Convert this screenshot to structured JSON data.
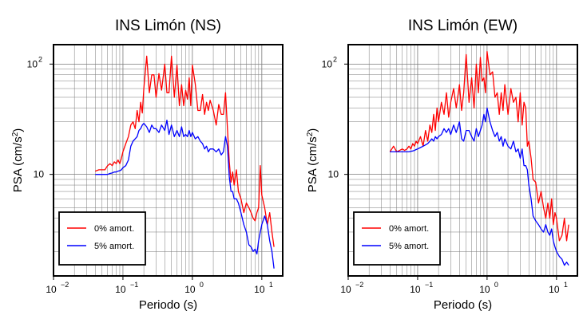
{
  "chart_data": [
    {
      "type": "line",
      "title": "INS Limón (NS)",
      "xlabel": "Periodo (s)",
      "ylabel_main": "PSA (cm/s",
      "ylabel_sup": "2",
      "ylabel_end": ")",
      "x_scale": "log",
      "y_scale": "log",
      "xlim": [
        0.01,
        20
      ],
      "ylim": [
        1.2,
        150
      ],
      "grid": true,
      "legend_position": "bottom-left",
      "x_ticks": [
        {
          "base": "10",
          "exp": "−2",
          "value": 0.01
        },
        {
          "base": "10",
          "exp": "−1",
          "value": 0.1
        },
        {
          "base": "10",
          "exp": "0",
          "value": 1
        },
        {
          "base": "10",
          "exp": "1",
          "value": 10
        }
      ],
      "y_ticks": [
        {
          "base": "10",
          "exp": "",
          "value": 10
        },
        {
          "base": "10",
          "exp": "2",
          "value": 100
        }
      ],
      "series": [
        {
          "name": "0% amort.",
          "color": "#ff0000",
          "x": [
            0.04,
            0.045,
            0.05,
            0.055,
            0.06,
            0.065,
            0.07,
            0.075,
            0.08,
            0.085,
            0.09,
            0.095,
            0.1,
            0.11,
            0.12,
            0.13,
            0.14,
            0.15,
            0.16,
            0.17,
            0.18,
            0.19,
            0.2,
            0.22,
            0.24,
            0.26,
            0.28,
            0.3,
            0.33,
            0.36,
            0.4,
            0.43,
            0.46,
            0.5,
            0.55,
            0.6,
            0.65,
            0.7,
            0.75,
            0.8,
            0.85,
            0.9,
            0.95,
            1.0,
            1.1,
            1.2,
            1.3,
            1.4,
            1.5,
            1.6,
            1.7,
            1.8,
            2.0,
            2.2,
            2.4,
            2.6,
            2.8,
            3.0,
            3.2,
            3.4,
            3.6,
            3.8,
            4.0,
            4.3,
            4.6,
            5.0,
            5.5,
            6.0,
            6.5,
            7.0,
            7.5,
            8.0,
            8.5,
            9.0,
            9.5,
            10,
            11,
            12,
            13,
            14,
            15
          ],
          "y": [
            10.7,
            11.0,
            11.0,
            11.0,
            12.0,
            12.5,
            12.0,
            13.0,
            12.5,
            13.5,
            12.5,
            14.0,
            16.0,
            19.0,
            22.0,
            28.0,
            30.0,
            26.0,
            38.0,
            30.0,
            45.0,
            36.0,
            60.0,
            118.0,
            55.0,
            80.0,
            80.0,
            50.0,
            82.0,
            58.0,
            100.0,
            55.0,
            55.0,
            118.0,
            50.0,
            98.0,
            42.0,
            65.0,
            42.0,
            58.0,
            48.0,
            75.0,
            42.0,
            98.0,
            66.0,
            38.0,
            38.0,
            53.0,
            35.0,
            45.0,
            38.0,
            47.0,
            38.0,
            28.0,
            43.0,
            35.0,
            35.0,
            55.0,
            26.0,
            13.0,
            8.5,
            10.5,
            8.0,
            11.0,
            7.0,
            6.0,
            4.5,
            5.5,
            5.0,
            4.5,
            4.0,
            3.8,
            4.5,
            5.0,
            12.0,
            6.5,
            5.0,
            3.5,
            4.5,
            3.0,
            2.2
          ]
        },
        {
          "name": "5% amort.",
          "color": "#0000ff",
          "x": [
            0.04,
            0.045,
            0.05,
            0.055,
            0.06,
            0.065,
            0.07,
            0.075,
            0.08,
            0.085,
            0.09,
            0.095,
            0.1,
            0.11,
            0.12,
            0.13,
            0.14,
            0.15,
            0.16,
            0.17,
            0.18,
            0.19,
            0.2,
            0.22,
            0.24,
            0.26,
            0.28,
            0.3,
            0.33,
            0.36,
            0.4,
            0.43,
            0.46,
            0.5,
            0.55,
            0.6,
            0.65,
            0.7,
            0.75,
            0.8,
            0.85,
            0.9,
            0.95,
            1.0,
            1.1,
            1.2,
            1.3,
            1.4,
            1.5,
            1.6,
            1.7,
            1.8,
            2.0,
            2.2,
            2.4,
            2.6,
            2.8,
            3.0,
            3.2,
            3.4,
            3.6,
            3.8,
            4.0,
            4.3,
            4.6,
            5.0,
            5.5,
            6.0,
            6.5,
            7.0,
            7.5,
            8.0,
            8.5,
            9.0,
            9.5,
            10,
            11,
            12,
            13,
            14,
            15
          ],
          "y": [
            10.0,
            10.0,
            10.0,
            10.0,
            10.0,
            10.2,
            10.3,
            10.5,
            10.5,
            10.7,
            10.8,
            11.0,
            11.5,
            12.0,
            13.5,
            18.0,
            20.0,
            21.0,
            22.0,
            25.0,
            26.0,
            28.0,
            29.0,
            27.0,
            24.0,
            28.0,
            26.0,
            26.0,
            24.0,
            28.0,
            25.0,
            31.0,
            23.0,
            28.0,
            22.0,
            25.0,
            22.0,
            27.0,
            22.0,
            23.0,
            22.0,
            25.0,
            22.0,
            24.0,
            21.0,
            22.0,
            20.0,
            19.0,
            17.0,
            18.0,
            16.0,
            17.0,
            17.0,
            16.0,
            17.0,
            15.0,
            16.0,
            22.0,
            18.0,
            9.5,
            7.0,
            7.0,
            6.0,
            6.0,
            5.5,
            4.5,
            3.5,
            3.0,
            2.3,
            2.2,
            2.0,
            2.1,
            1.9,
            2.5,
            3.0,
            3.5,
            4.2,
            3.5,
            2.5,
            2.0,
            1.4
          ]
        }
      ],
      "legend_entries": [
        "0% amort.",
        "5% amort."
      ]
    },
    {
      "type": "line",
      "title": "INS Limón (EW)",
      "xlabel": "Periodo (s)",
      "ylabel_main": "PSA (cm/s",
      "ylabel_sup": "2",
      "ylabel_end": ")",
      "x_scale": "log",
      "y_scale": "log",
      "xlim": [
        0.01,
        20
      ],
      "ylim": [
        1.2,
        150
      ],
      "grid": true,
      "legend_position": "bottom-left",
      "x_ticks": [
        {
          "base": "10",
          "exp": "−2",
          "value": 0.01
        },
        {
          "base": "10",
          "exp": "−1",
          "value": 0.1
        },
        {
          "base": "10",
          "exp": "0",
          "value": 1
        },
        {
          "base": "10",
          "exp": "1",
          "value": 10
        }
      ],
      "y_ticks": [
        {
          "base": "10",
          "exp": "",
          "value": 10
        },
        {
          "base": "10",
          "exp": "2",
          "value": 100
        }
      ],
      "series": [
        {
          "name": "0% amort.",
          "color": "#ff0000",
          "x": [
            0.04,
            0.045,
            0.05,
            0.055,
            0.06,
            0.065,
            0.07,
            0.075,
            0.08,
            0.085,
            0.09,
            0.095,
            0.1,
            0.11,
            0.12,
            0.13,
            0.14,
            0.15,
            0.16,
            0.17,
            0.18,
            0.19,
            0.2,
            0.22,
            0.24,
            0.26,
            0.28,
            0.3,
            0.33,
            0.36,
            0.4,
            0.43,
            0.46,
            0.5,
            0.55,
            0.6,
            0.65,
            0.7,
            0.75,
            0.8,
            0.85,
            0.9,
            0.95,
            1.0,
            1.1,
            1.2,
            1.3,
            1.4,
            1.5,
            1.6,
            1.7,
            1.8,
            2.0,
            2.2,
            2.4,
            2.6,
            2.8,
            3.0,
            3.2,
            3.4,
            3.6,
            3.8,
            4.0,
            4.3,
            4.6,
            5.0,
            5.5,
            6.0,
            6.5,
            7.0,
            7.5,
            8.0,
            8.5,
            9.0,
            9.5,
            10,
            11,
            12,
            13,
            14,
            15
          ],
          "y": [
            16.0,
            18.0,
            16.0,
            16.5,
            17.0,
            16.5,
            17.0,
            18.0,
            17.0,
            19.0,
            18.0,
            20.0,
            19.0,
            22.0,
            18.0,
            25.0,
            20.0,
            28.0,
            24.0,
            35.0,
            25.0,
            40.0,
            30.0,
            45.0,
            35.0,
            55.0,
            33.0,
            45.0,
            60.0,
            40.0,
            65.0,
            38.0,
            55.0,
            122.0,
            45.0,
            75.0,
            40.0,
            100.0,
            55.0,
            115.0,
            70.0,
            75.0,
            55.0,
            130.0,
            80.0,
            85.0,
            50.0,
            55.0,
            35.0,
            55.0,
            38.0,
            65.0,
            35.0,
            60.0,
            45.0,
            50.0,
            30.0,
            55.0,
            28.0,
            45.0,
            40.0,
            18.0,
            20.0,
            14.0,
            9.0,
            8.5,
            5.5,
            7.0,
            5.0,
            4.0,
            5.5,
            4.0,
            6.0,
            3.5,
            4.5,
            4.0,
            2.5,
            2.8,
            4.0,
            2.5,
            3.5
          ]
        },
        {
          "name": "5% amort.",
          "color": "#0000ff",
          "x": [
            0.04,
            0.045,
            0.05,
            0.055,
            0.06,
            0.065,
            0.07,
            0.075,
            0.08,
            0.085,
            0.09,
            0.095,
            0.1,
            0.11,
            0.12,
            0.13,
            0.14,
            0.15,
            0.16,
            0.17,
            0.18,
            0.19,
            0.2,
            0.22,
            0.24,
            0.26,
            0.28,
            0.3,
            0.33,
            0.36,
            0.4,
            0.43,
            0.46,
            0.5,
            0.55,
            0.6,
            0.65,
            0.7,
            0.75,
            0.8,
            0.85,
            0.9,
            0.95,
            1.0,
            1.1,
            1.2,
            1.3,
            1.4,
            1.5,
            1.6,
            1.7,
            1.8,
            2.0,
            2.2,
            2.4,
            2.6,
            2.8,
            3.0,
            3.2,
            3.4,
            3.6,
            3.8,
            4.0,
            4.3,
            4.6,
            5.0,
            5.5,
            6.0,
            6.5,
            7.0,
            7.5,
            8.0,
            8.5,
            9.0,
            9.5,
            10,
            11,
            12,
            13,
            14,
            15
          ],
          "y": [
            16.0,
            16.0,
            16.0,
            16.0,
            16.0,
            16.0,
            16.0,
            16.0,
            16.2,
            16.3,
            16.5,
            16.8,
            17.0,
            17.5,
            18.0,
            18.5,
            19.0,
            20.0,
            21.0,
            20.0,
            22.0,
            21.0,
            22.0,
            23.0,
            26.0,
            24.0,
            26.0,
            23.0,
            28.0,
            24.0,
            30.0,
            21.0,
            20.0,
            25.0,
            25.0,
            22.0,
            20.0,
            26.0,
            22.0,
            25.0,
            28.0,
            35.0,
            30.0,
            40.0,
            30.0,
            25.0,
            22.0,
            24.0,
            20.0,
            22.0,
            18.0,
            21.0,
            18.0,
            17.0,
            20.0,
            16.0,
            17.0,
            14.0,
            17.0,
            12.0,
            12.0,
            11.0,
            8.0,
            6.0,
            4.2,
            3.8,
            3.5,
            3.2,
            3.0,
            3.5,
            3.0,
            2.8,
            3.2,
            2.5,
            2.2,
            2.0,
            1.8,
            1.7,
            1.5,
            1.6,
            1.5
          ]
        }
      ],
      "legend_entries": [
        "0% amort.",
        "5% amort."
      ]
    }
  ]
}
